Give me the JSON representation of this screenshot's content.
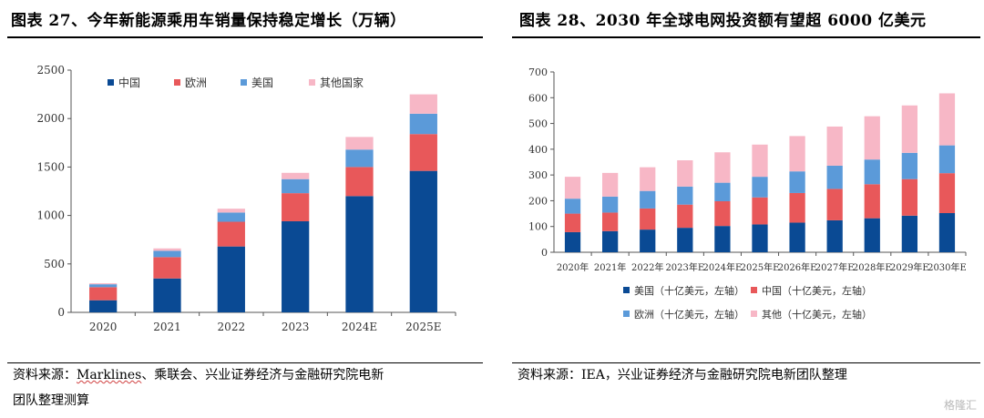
{
  "left_panel": {
    "title": "图表 27、今年新能源乘用车销量保持稳定增长（万辆）",
    "source_line1_prefix": "资料来源：",
    "source_line1_underlined": "Marklines",
    "source_line1_suffix": "、乘联会、兴业证券经济与金融研究院电新",
    "source_line2": "团队整理测算"
  },
  "right_panel": {
    "title": "图表 28、2030 年全球电网投资额有望超 6000 亿美元",
    "source_line1": "资料来源：IEA，兴业证券经济与金融研究院电新团队整理"
  },
  "watermark": "格隆汇",
  "colors": {
    "china": "#0a4a94",
    "europe": "#e8585a",
    "usa": "#5b9ad9",
    "other": "#f7b7c6"
  },
  "chart_data": [
    {
      "type": "bar",
      "stacked": true,
      "categories": [
        "2020",
        "2021",
        "2022",
        "2023",
        "2024E",
        "2025E"
      ],
      "series": [
        {
          "name": "中国",
          "values": [
            125,
            350,
            680,
            940,
            1200,
            1460
          ]
        },
        {
          "name": "欧洲",
          "values": [
            135,
            220,
            255,
            290,
            300,
            380
          ]
        },
        {
          "name": "美国",
          "values": [
            30,
            65,
            95,
            145,
            180,
            210
          ]
        },
        {
          "name": "其他国家",
          "values": [
            10,
            25,
            40,
            65,
            130,
            200
          ]
        }
      ],
      "ylim": [
        0,
        2500
      ],
      "yticks": [
        0,
        500,
        1000,
        1500,
        2000,
        2500
      ],
      "legend": "top",
      "grid": false
    },
    {
      "type": "bar",
      "stacked": true,
      "categories": [
        "2020年",
        "2021年",
        "2022年",
        "2023年E",
        "2024年E",
        "2025年E",
        "2026年E",
        "2027年E",
        "2028年E",
        "2029年E",
        "2030年E"
      ],
      "series": [
        {
          "name": "美国（十亿美元，左轴）",
          "values": [
            78,
            82,
            88,
            95,
            102,
            108,
            115,
            124,
            132,
            142,
            152
          ]
        },
        {
          "name": "中国（十亿美元，左轴）",
          "values": [
            72,
            72,
            82,
            90,
            96,
            105,
            115,
            122,
            132,
            142,
            155
          ]
        },
        {
          "name": "欧洲（十亿美元，左轴）",
          "values": [
            58,
            62,
            68,
            70,
            72,
            80,
            84,
            90,
            96,
            102,
            108
          ]
        },
        {
          "name": "其他（十亿美元，左轴）",
          "values": [
            85,
            92,
            92,
            102,
            118,
            125,
            137,
            152,
            168,
            184,
            202
          ]
        }
      ],
      "ylim": [
        0,
        700
      ],
      "yticks": [
        0,
        100,
        200,
        300,
        400,
        500,
        600,
        700
      ],
      "legend": "bottom",
      "grid": false
    }
  ]
}
